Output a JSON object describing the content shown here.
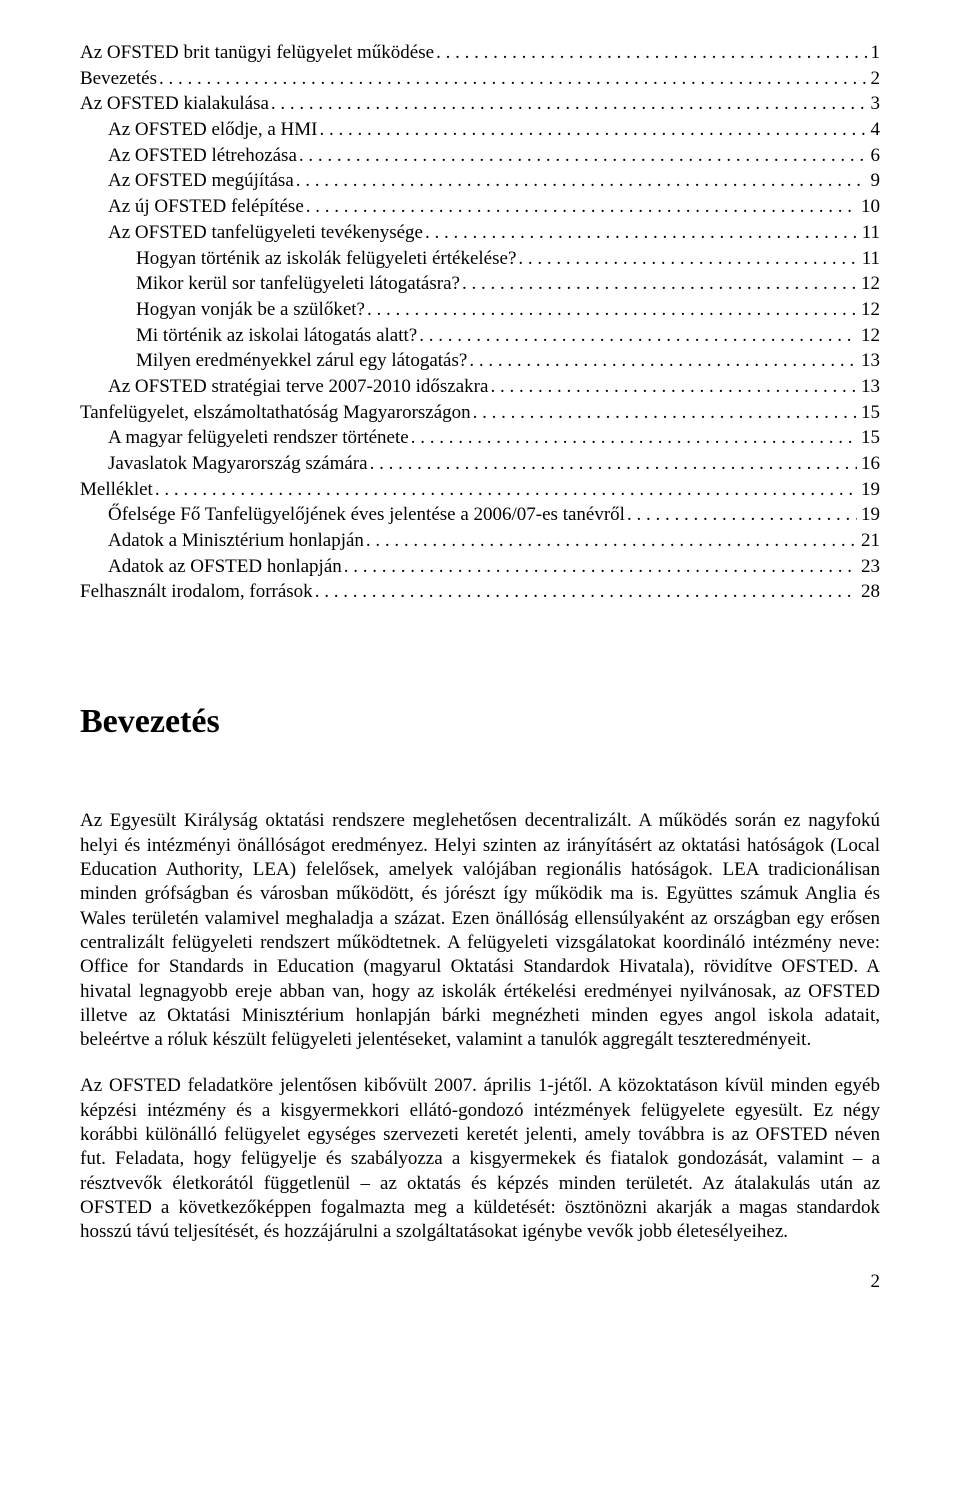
{
  "toc": [
    {
      "label": "Az OFSTED brit tanügyi felügyelet működése",
      "page": "1",
      "indent": 0
    },
    {
      "label": "Bevezetés",
      "page": "2",
      "indent": 0
    },
    {
      "label": "Az OFSTED kialakulása",
      "page": "3",
      "indent": 0
    },
    {
      "label": "Az OFSTED elődje, a HMI",
      "page": "4",
      "indent": 1
    },
    {
      "label": "Az OFSTED létrehozása",
      "page": "6",
      "indent": 1
    },
    {
      "label": "Az OFSTED megújítása",
      "page": "9",
      "indent": 1
    },
    {
      "label": "Az új OFSTED felépítése",
      "page": "10",
      "indent": 1
    },
    {
      "label": "Az OFSTED tanfelügyeleti tevékenysége",
      "page": "11",
      "indent": 1
    },
    {
      "label": "Hogyan történik az iskolák felügyeleti értékelése?",
      "page": "11",
      "indent": 2
    },
    {
      "label": "Mikor kerül sor tanfelügyeleti látogatásra?",
      "page": "12",
      "indent": 2
    },
    {
      "label": "Hogyan vonják be a szülőket?",
      "page": "12",
      "indent": 2
    },
    {
      "label": "Mi történik az iskolai látogatás alatt?",
      "page": "12",
      "indent": 2
    },
    {
      "label": "Milyen eredményekkel zárul egy látogatás?",
      "page": "13",
      "indent": 2
    },
    {
      "label": "Az OFSTED stratégiai terve 2007-2010 időszakra",
      "page": "13",
      "indent": 1
    },
    {
      "label": "Tanfelügyelet, elszámoltathatóság Magyarországon",
      "page": "15",
      "indent": 0
    },
    {
      "label": "A magyar felügyeleti rendszer története",
      "page": "15",
      "indent": 1
    },
    {
      "label": "Javaslatok Magyarország számára",
      "page": "16",
      "indent": 1
    },
    {
      "label": "Melléklet",
      "page": "19",
      "indent": 0
    },
    {
      "label": "Őfelsége Fő Tanfelügyelőjének éves jelentése a 2006/07-es tanévről",
      "page": "19",
      "indent": 1
    },
    {
      "label": "Adatok a Minisztérium honlapján",
      "page": "21",
      "indent": 1
    },
    {
      "label": "Adatok az OFSTED honlapján",
      "page": "23",
      "indent": 1
    },
    {
      "label": "Felhasznált irodalom, források",
      "page": "28",
      "indent": 0
    }
  ],
  "heading": "Bevezetés",
  "para1": "Az Egyesült Királyság oktatási rendszere meglehetősen decentralizált. A működés során ez nagyfokú helyi és intézményi önállóságot eredményez. Helyi szinten az irányításért az oktatási hatóságok (Local Education Authority, LEA) felelősek, amelyek valójában regionális hatóságok. LEA tradicionálisan minden grófságban és városban működött, és jórészt így működik ma is. Együttes számuk Anglia és Wales területén valamivel meghaladja a százat. Ezen önállóság ellensúlyaként az országban egy erősen centralizált felügyeleti rendszert működtetnek. A felügyeleti vizsgálatokat koordináló intézmény neve: Office for Standards in Education (magyarul Oktatási Standardok Hivatala), rövidítve OFSTED. A hivatal legnagyobb ereje abban van, hogy az iskolák értékelési eredményei nyilvánosak, az OFSTED illetve az Oktatási Minisztérium honlapján bárki megnézheti minden egyes angol iskola adatait, beleértve a róluk készült felügyeleti jelentéseket, valamint a tanulók aggregált teszteredményeit.",
  "para2": "Az OFSTED feladatköre jelentősen kibővült 2007. április 1-jétől. A közoktatáson kívül minden egyéb képzési intézmény és a kisgyermekkori ellátó-gondozó intézmények felügyelete egyesült. Ez négy korábbi különálló felügyelet egységes szervezeti keretét jelenti, amely továbbra is az OFSTED néven fut. Feladata, hogy felügyelje és szabályozza a kisgyermekek és fiatalok gondozását, valamint – a résztvevők életkorától függetlenül – az oktatás és képzés minden területét. Az átalakulás után az OFSTED a következőképpen fogalmazta meg a küldetését: ösztönözni akarják a magas standardok hosszú távú teljesítését, és hozzájárulni a szolgáltatásokat igénybe vevők jobb életesélyeihez.",
  "page_number": "2"
}
